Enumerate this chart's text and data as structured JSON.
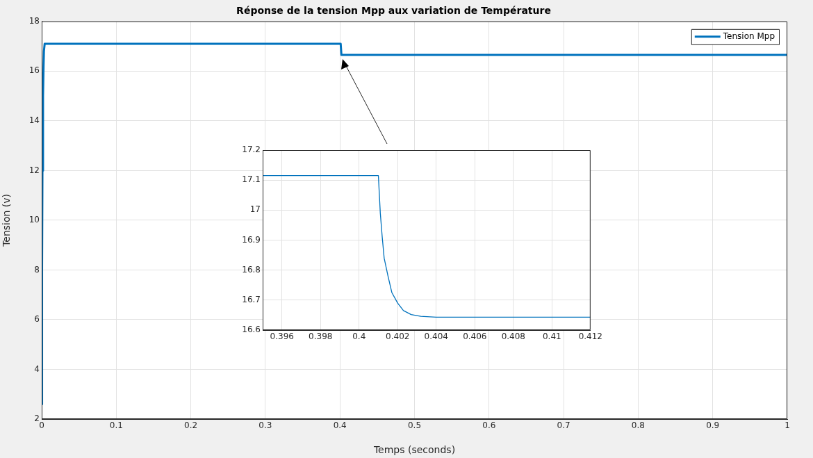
{
  "chart_data": [
    {
      "type": "line",
      "title": "Réponse de la tension Mpp aux variation de Température",
      "xlabel": "Temps (seconds)",
      "ylabel": "Tension (v)",
      "xlim": [
        0,
        1
      ],
      "xticks": [
        0,
        0.1,
        0.2,
        0.3,
        0.4,
        0.5,
        0.6,
        0.7,
        0.8,
        0.9,
        1
      ],
      "ylim": [
        2,
        18
      ],
      "yticks": [
        2,
        4,
        6,
        8,
        10,
        12,
        14,
        16,
        18
      ],
      "grid": true,
      "legend": "top right",
      "series": [
        {
          "name": "Tension Mpp",
          "color": "#0072bd",
          "x": [
            0,
            0.0005,
            0.001,
            0.0018,
            0.0025,
            0.003,
            0.004,
            0.401,
            0.402,
            1
          ],
          "values": [
            2.6,
            8,
            12,
            15,
            16.2,
            16.8,
            17.1,
            17.1,
            16.65,
            16.65
          ]
        }
      ]
    },
    {
      "type": "line",
      "xlim": [
        0.395,
        0.412
      ],
      "xticks": [
        0.396,
        0.398,
        0.4,
        0.402,
        0.404,
        0.406,
        0.408,
        0.41,
        0.412
      ],
      "ylim": [
        16.6,
        17.2
      ],
      "yticks": [
        16.6,
        16.7,
        16.8,
        16.9,
        17,
        17.1,
        17.2
      ],
      "grid": true,
      "series": [
        {
          "color": "#0072bd",
          "x": [
            0.395,
            0.401,
            0.4011,
            0.4012,
            0.4013,
            0.4015,
            0.4017,
            0.402,
            0.4023,
            0.4027,
            0.4032,
            0.404,
            0.412
          ],
          "values": [
            17.115,
            17.115,
            16.99,
            16.91,
            16.84,
            16.78,
            16.725,
            16.69,
            16.665,
            16.652,
            16.646,
            16.643,
            16.643
          ]
        }
      ]
    }
  ]
}
